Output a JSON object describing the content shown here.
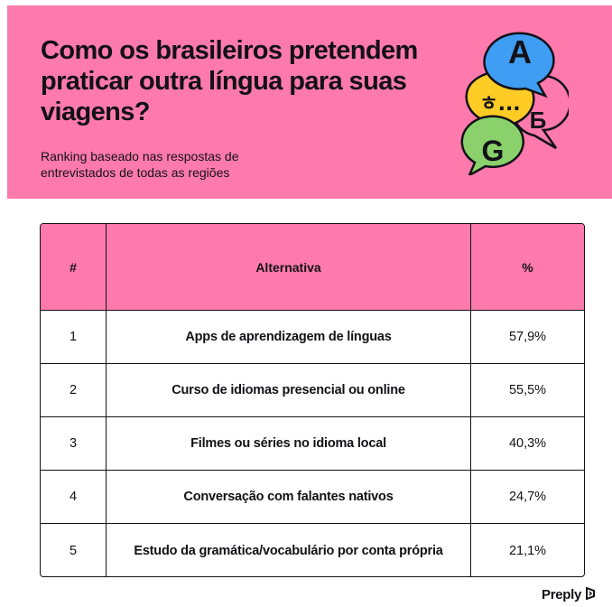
{
  "header": {
    "title": "Como os brasileiros pretendem praticar outra língua para suas viagens?",
    "subtitle": "Ranking baseado nas respostas de entrevistados de todas as regiões",
    "bubbles": [
      {
        "letter": "A",
        "color": "#3f9df3"
      },
      {
        "letter": "ㅎ...",
        "color": "#ffcc25"
      },
      {
        "letter": "Б",
        "color": "#ff7aac"
      },
      {
        "letter": "G",
        "color": "#8ad16c"
      }
    ]
  },
  "chart_data": {
    "type": "table",
    "columns": [
      "#",
      "Alternativa",
      "%"
    ],
    "rows": [
      {
        "rank": "1",
        "alternative": "Apps de aprendizagem de línguas",
        "percent": "57,9%"
      },
      {
        "rank": "2",
        "alternative": "Curso de idiomas presencial ou online",
        "percent": "55,5%"
      },
      {
        "rank": "3",
        "alternative": "Filmes ou séries no idioma local",
        "percent": "40,3%"
      },
      {
        "rank": "4",
        "alternative": "Conversação com falantes nativos",
        "percent": "24,7%"
      },
      {
        "rank": "5",
        "alternative": "Estudo da gramática/vocabulário por conta própria",
        "percent": "21,1%"
      }
    ]
  },
  "footer": {
    "brand": "Preply"
  },
  "colors": {
    "accent_pink": "#ff7aac",
    "ink": "#121117"
  }
}
